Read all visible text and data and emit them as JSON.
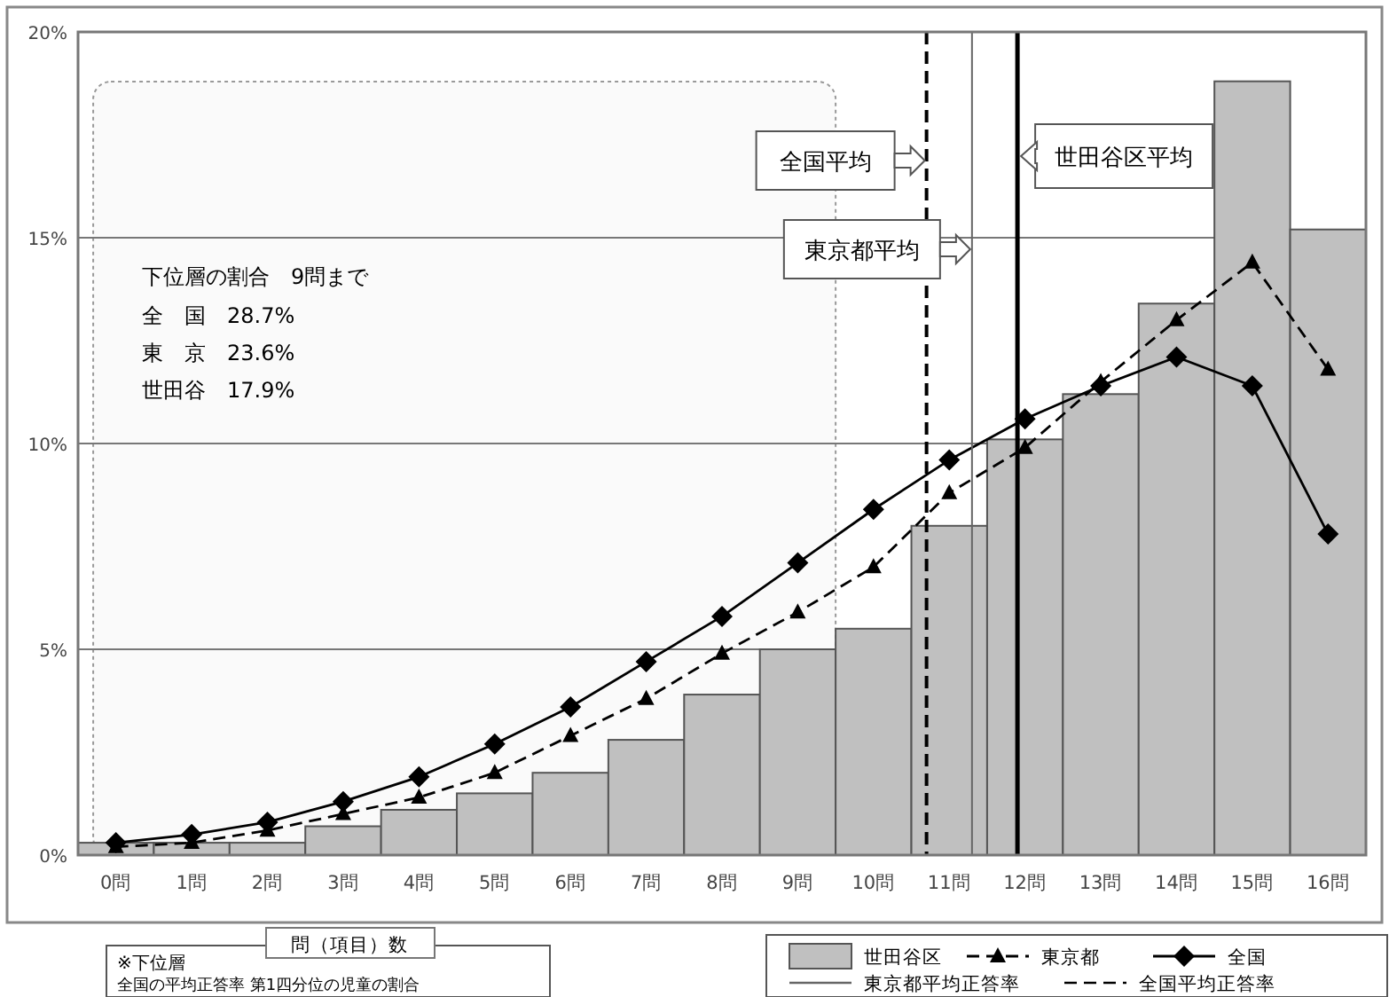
{
  "chart_data": {
    "type": "bar",
    "xlabel": "問（項目）数",
    "x": [
      0,
      1,
      2,
      3,
      4,
      5,
      6,
      7,
      8,
      9,
      10,
      11,
      12,
      13,
      14,
      15,
      16
    ],
    "xlim": [
      -0.5,
      16.5
    ],
    "xticks": [
      {
        "value": 0,
        "label": "0問"
      },
      {
        "value": 1,
        "label": "1問"
      },
      {
        "value": 2,
        "label": "2問"
      },
      {
        "value": 3,
        "label": "3問"
      },
      {
        "value": 4,
        "label": "4問"
      },
      {
        "value": 5,
        "label": "5問"
      },
      {
        "value": 6,
        "label": "6問"
      },
      {
        "value": 7,
        "label": "7問"
      },
      {
        "value": 8,
        "label": "8問"
      },
      {
        "value": 9,
        "label": "9問"
      },
      {
        "value": 10,
        "label": "10問"
      },
      {
        "value": 11,
        "label": "11問"
      },
      {
        "value": 12,
        "label": "12問"
      },
      {
        "value": 13,
        "label": "13問"
      },
      {
        "value": 14,
        "label": "14問"
      },
      {
        "value": 15,
        "label": "15問"
      },
      {
        "value": 16,
        "label": "16問"
      }
    ],
    "ylim": [
      0,
      20
    ],
    "yticks": [
      {
        "value": 0,
        "label": "0%"
      },
      {
        "value": 5,
        "label": "5%"
      },
      {
        "value": 10,
        "label": "10%"
      },
      {
        "value": 15,
        "label": "15%"
      },
      {
        "value": 20,
        "label": "20%"
      }
    ],
    "grid": "y",
    "legend": "bottom right",
    "series": [
      {
        "name": "世田谷区",
        "color": "#c0c0c0",
        "values": [
          0.3,
          0.3,
          0.3,
          0.7,
          1.1,
          1.5,
          2.0,
          2.8,
          3.9,
          5.0,
          5.5,
          8.0,
          10.1,
          11.2,
          13.4,
          18.8,
          15.2
        ]
      },
      {
        "name": "東京都",
        "type": "line",
        "color": "#000000",
        "marker": "triangle",
        "line_style": "dashed",
        "values": [
          0.2,
          0.3,
          0.6,
          1.0,
          1.4,
          2.0,
          2.9,
          3.8,
          4.9,
          5.9,
          7.0,
          8.8,
          9.9,
          11.5,
          13.0,
          14.4,
          11.8
        ]
      },
      {
        "name": "全国",
        "type": "line",
        "color": "#000000",
        "marker": "diamond",
        "line_style": "solid",
        "values": [
          0.3,
          0.5,
          0.8,
          1.3,
          1.9,
          2.7,
          3.6,
          4.7,
          5.8,
          7.1,
          8.4,
          9.6,
          10.6,
          11.4,
          12.1,
          11.4,
          7.8
        ]
      }
    ],
    "bands": [
      {
        "axis": "x",
        "from": -0.3,
        "to": 9.5,
        "color": "#fafafa"
      }
    ],
    "ref_lines": [
      {
        "axis": "x",
        "value": 10.7,
        "label": "全国平均",
        "line_style": "dashed",
        "color": "#000000"
      },
      {
        "axis": "x",
        "value": 11.3,
        "label": "東京都平均",
        "line_style": "solid",
        "color": "#666666"
      },
      {
        "axis": "x",
        "value": 11.9,
        "label": "世田谷区平均",
        "line_style": "solid",
        "color": "#000000"
      }
    ],
    "annotations": [
      "下位層の割合　9問まで",
      "全　国　28.7%",
      "東　京　23.6%",
      "世田谷　17.9%",
      "※下位層",
      "全国の平均正答率 第1四分位の児童の割合",
      "東京都平均正答率",
      "全国平均正答率"
    ]
  }
}
